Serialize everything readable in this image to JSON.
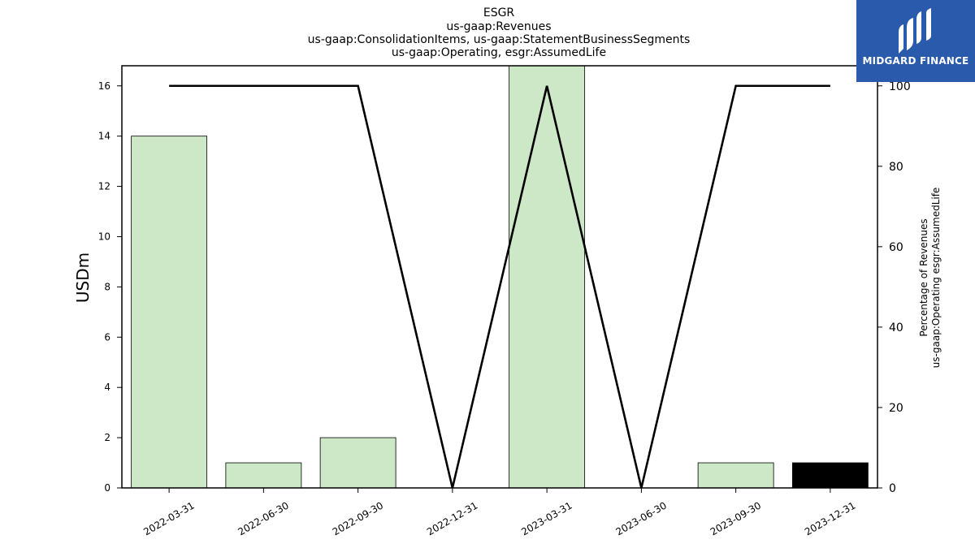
{
  "chart_data": {
    "type": "bar",
    "title_lines": [
      "ESGR",
      "us-gaap:Revenues",
      "us-gaap:ConsolidationItems, us-gaap:StatementBusinessSegments",
      "us-gaap:Operating, esgr:AssumedLife"
    ],
    "categories": [
      "2022-03-31",
      "2022-06-30",
      "2022-09-30",
      "2022-12-31",
      "2023-03-31",
      "2023-06-30",
      "2023-09-30",
      "2023-12-31"
    ],
    "bar_values": [
      14,
      1,
      2,
      0,
      17,
      0,
      1,
      1
    ],
    "bar_colors": [
      "#cce8c6",
      "#cce8c6",
      "#cce8c6",
      "#cce8c6",
      "#cce8c6",
      "#cce8c6",
      "#cce8c6",
      "#000000"
    ],
    "line_values": [
      100,
      100,
      100,
      0,
      100,
      0,
      100,
      100
    ],
    "ylabel": "USDm",
    "y2label_lines": [
      "Percentage of Revenues",
      "us-gaap:Operating esgr:AssumedLife"
    ],
    "ylim": [
      0,
      16.8
    ],
    "y2lim": [
      0,
      105
    ],
    "yticks": [
      0,
      2,
      4,
      6,
      8,
      10,
      12,
      14,
      16
    ],
    "y2ticks": [
      0,
      20,
      40,
      60,
      80,
      100
    ],
    "grid": false
  },
  "logo": {
    "text": "MIDGARD FINANCE",
    "color": "#2a5aab"
  }
}
